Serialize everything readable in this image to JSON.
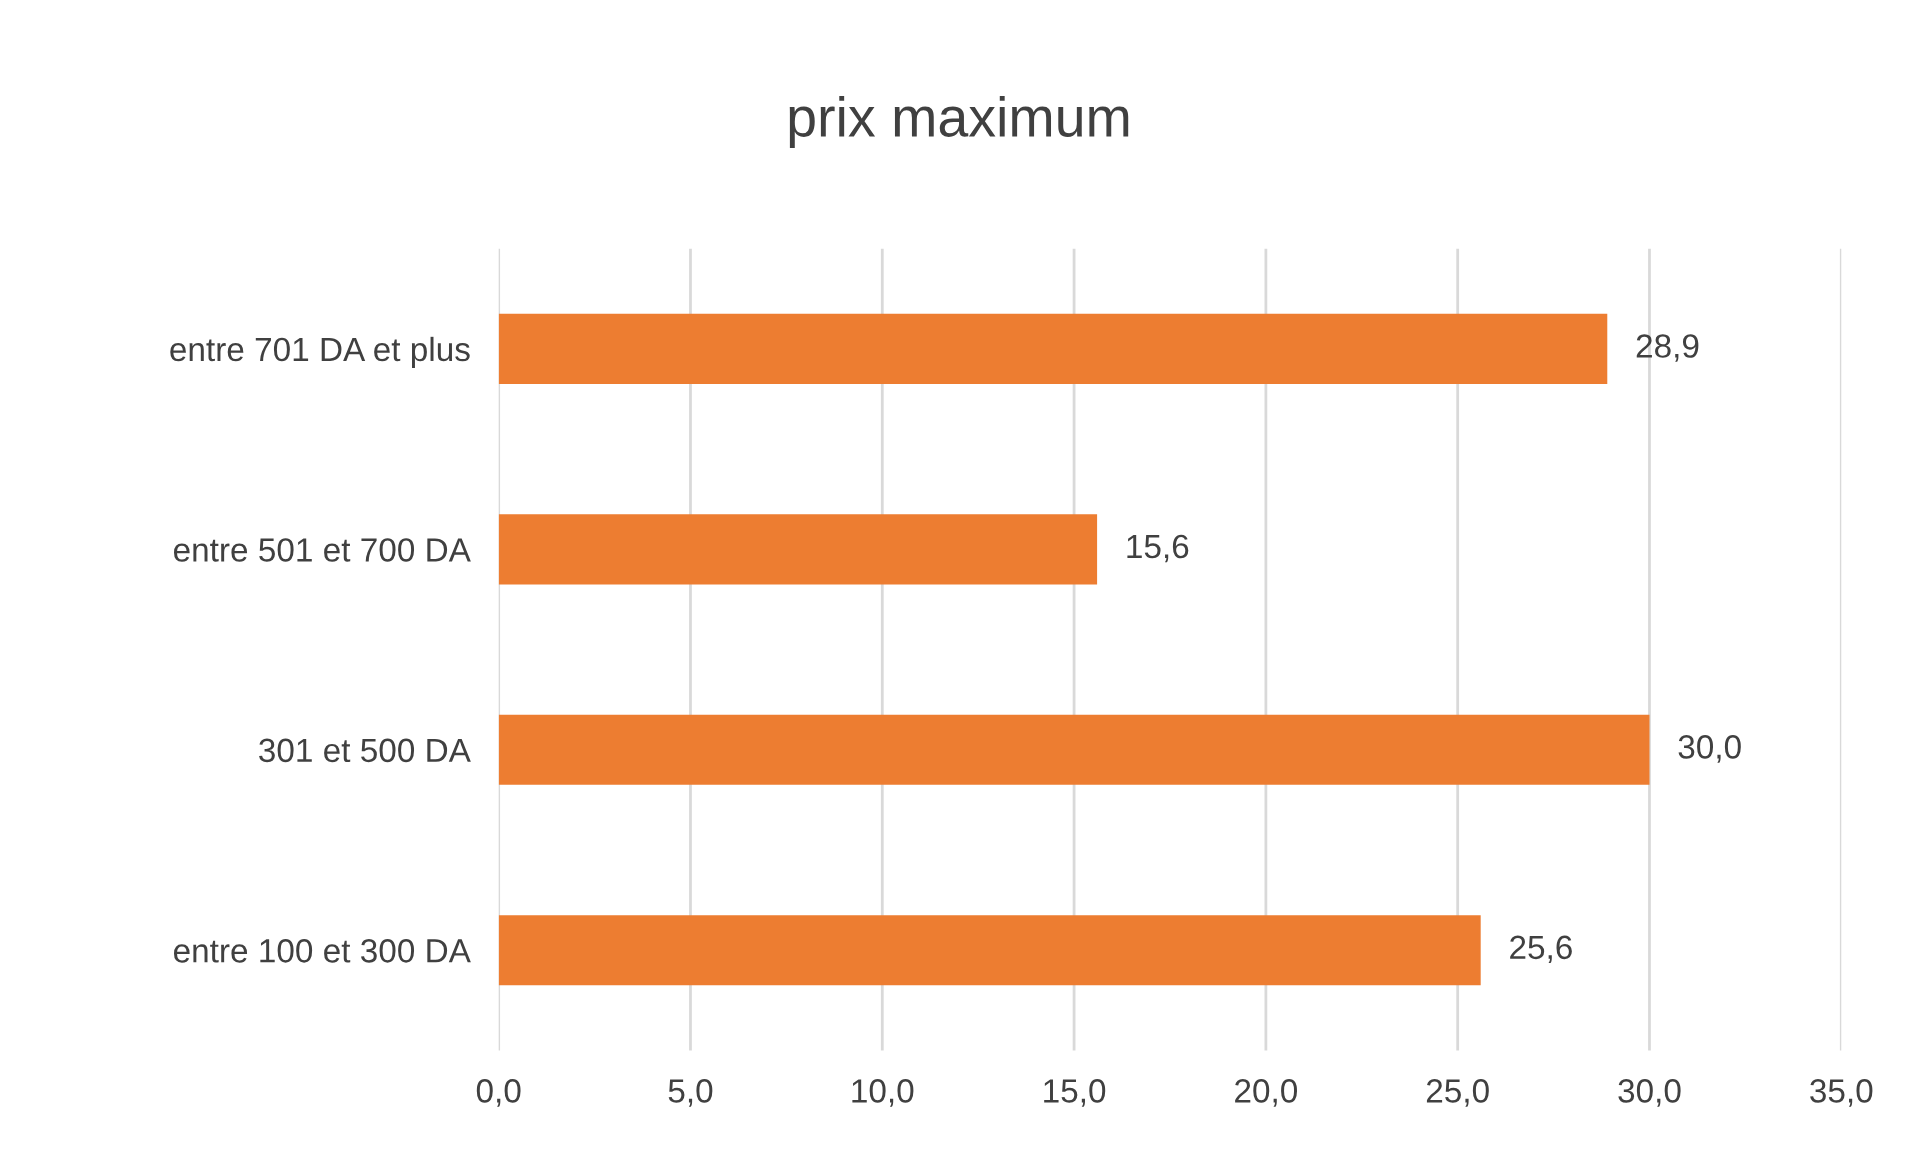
{
  "chart_data": {
    "type": "bar",
    "orientation": "horizontal",
    "title": "prix maximum",
    "categories": [
      "entre 701 DA et plus",
      "entre 501 et 700 DA",
      "301 et 500 DA",
      "entre 100 et 300 DA"
    ],
    "values": [
      28.9,
      15.6,
      30.0,
      25.6
    ],
    "value_labels": [
      "28,9",
      "15,6",
      "30,0",
      "25,6"
    ],
    "color": "#ed7d31",
    "xlim": [
      0,
      35
    ],
    "xticks": [
      {
        "value": 0,
        "label": "0,0"
      },
      {
        "value": 5,
        "label": "5,0"
      },
      {
        "value": 10,
        "label": "10,0"
      },
      {
        "value": 15,
        "label": "15,0"
      },
      {
        "value": 20,
        "label": "20,0"
      },
      {
        "value": 25,
        "label": "25,0"
      },
      {
        "value": 30,
        "label": "30,0"
      },
      {
        "value": 35,
        "label": "35,0"
      }
    ],
    "grid": "x",
    "legend": false
  }
}
